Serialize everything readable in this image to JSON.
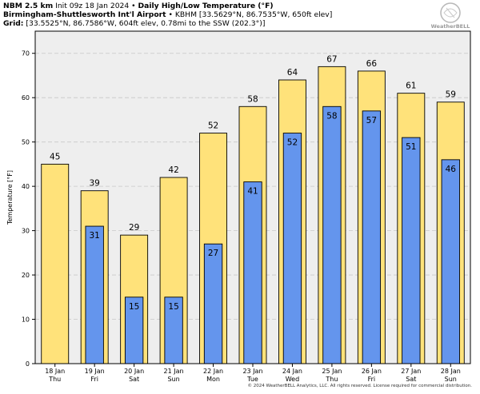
{
  "header": {
    "model": "NBM 2.5 km",
    "init": "Init 09z 18 Jan 2024",
    "bullet": "•",
    "product": "Daily High/Low Temperature (°F)",
    "station_name": "Birmingham-Shuttlesworth Int'l Airport",
    "station_info": "KBHM [33.5629°N, 86.7535°W, 650ft elev]",
    "grid_label": "Grid:",
    "grid_info": "[33.5525°N, 86.7586°W, 604ft elev, 0.78mi to the SSW (202.3°)]"
  },
  "logo": {
    "text": "WeatherBELL"
  },
  "footer": {
    "copyright": "© 2024 WeatherBELL Analytics, LLC. All rights reserved. License required for commercial distribution."
  },
  "chart_data": {
    "type": "bar",
    "title": "Daily High/Low Temperature (°F)",
    "ylabel": "Temperature [°F]",
    "xlabel": "",
    "ylim": [
      0,
      75
    ],
    "yticks": [
      0,
      10,
      20,
      30,
      40,
      50,
      60,
      70
    ],
    "grid": true,
    "categories": [
      {
        "date": "18 Jan",
        "day": "Thu"
      },
      {
        "date": "19 Jan",
        "day": "Fri"
      },
      {
        "date": "20 Jan",
        "day": "Sat"
      },
      {
        "date": "21 Jan",
        "day": "Sun"
      },
      {
        "date": "22 Jan",
        "day": "Mon"
      },
      {
        "date": "23 Jan",
        "day": "Tue"
      },
      {
        "date": "24 Jan",
        "day": "Wed"
      },
      {
        "date": "25 Jan",
        "day": "Thu"
      },
      {
        "date": "26 Jan",
        "day": "Fri"
      },
      {
        "date": "27 Jan",
        "day": "Sat"
      },
      {
        "date": "28 Jan",
        "day": "Sun"
      }
    ],
    "series": [
      {
        "name": "High",
        "color": "#ffe27a",
        "values": [
          45,
          39,
          29,
          42,
          52,
          58,
          64,
          67,
          66,
          61,
          59
        ]
      },
      {
        "name": "Low",
        "color": "#6495ed",
        "values": [
          null,
          31,
          15,
          15,
          27,
          41,
          52,
          58,
          57,
          51,
          46
        ]
      }
    ]
  }
}
